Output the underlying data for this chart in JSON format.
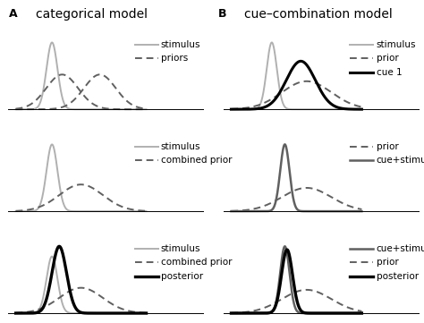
{
  "title_left": "categorical model",
  "title_right": "cue–combination model",
  "label_A": "A",
  "label_B": "B",
  "bg_color": "#ffffff",
  "light_gray": "#b0b0b0",
  "dark_gray": "#606060",
  "black": "#000000",
  "row1_left": {
    "stimulus": {
      "mu": -1.5,
      "sigma": 0.38,
      "scale": 1.0
    },
    "prior1": {
      "mu": -0.8,
      "sigma": 1.1,
      "scale": 0.52
    },
    "prior2": {
      "mu": 1.8,
      "sigma": 1.1,
      "scale": 0.52
    },
    "legend": [
      "stimulus",
      "priors"
    ]
  },
  "row1_right": {
    "stimulus": {
      "mu": -1.2,
      "sigma": 0.35,
      "scale": 1.0
    },
    "prior": {
      "mu": 1.2,
      "sigma": 1.7,
      "scale": 0.42
    },
    "cue1": {
      "mu": 0.8,
      "sigma": 1.0,
      "scale": 0.72
    },
    "legend": [
      "stimulus",
      "prior",
      "cue 1"
    ]
  },
  "row2_left": {
    "stimulus": {
      "mu": -1.5,
      "sigma": 0.38,
      "scale": 1.0
    },
    "combined_prior": {
      "mu": 0.5,
      "sigma": 1.5,
      "scale": 0.4
    },
    "legend": [
      "stimulus",
      "combined prior"
    ]
  },
  "row2_right": {
    "cue_stimulus": {
      "mu": -0.3,
      "sigma": 0.32,
      "scale": 1.0
    },
    "prior": {
      "mu": 1.2,
      "sigma": 1.7,
      "scale": 0.35
    },
    "legend": [
      "prior",
      "cue+stimulus"
    ]
  },
  "row3_left": {
    "stimulus": {
      "mu": -1.5,
      "sigma": 0.38,
      "scale": 0.85
    },
    "combined_prior": {
      "mu": 0.5,
      "sigma": 1.5,
      "scale": 0.38
    },
    "posterior": {
      "mu": -1.0,
      "sigma": 0.5,
      "scale": 1.0
    },
    "legend": [
      "stimulus",
      "combined prior",
      "posterior"
    ]
  },
  "row3_right": {
    "cue_stimulus": {
      "mu": -0.3,
      "sigma": 0.32,
      "scale": 1.0
    },
    "prior": {
      "mu": 1.2,
      "sigma": 1.7,
      "scale": 0.35
    },
    "posterior": {
      "mu": -0.15,
      "sigma": 0.38,
      "scale": 0.95
    },
    "legend": [
      "cue+stimulus",
      "prior",
      "posterior"
    ]
  },
  "xmin": -4.0,
  "xmax": 5.0
}
